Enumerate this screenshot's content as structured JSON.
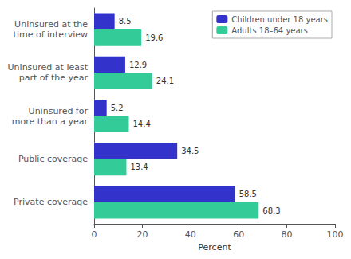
{
  "chart_data": {
    "type": "bar",
    "orientation": "horizontal",
    "categories": [
      "Uninsured at the\ntime of interview",
      "Uninsured at least\npart of the year",
      "Uninsured for\nmore than a year",
      "Public coverage",
      "Private coverage"
    ],
    "series": [
      {
        "name": "Children under 18 years",
        "color": "#3333cc",
        "values": [
          8.5,
          12.9,
          5.2,
          34.5,
          58.5
        ]
      },
      {
        "name": "Adults 18–64 years",
        "color": "#33cc99",
        "values": [
          19.6,
          24.1,
          14.4,
          13.4,
          68.3
        ]
      }
    ],
    "xlabel": "Percent",
    "xlim": [
      0,
      100
    ],
    "xticks": [
      0,
      20,
      40,
      60,
      80,
      100
    ],
    "data_labels": true,
    "legend": "upper right",
    "grid": false
  }
}
